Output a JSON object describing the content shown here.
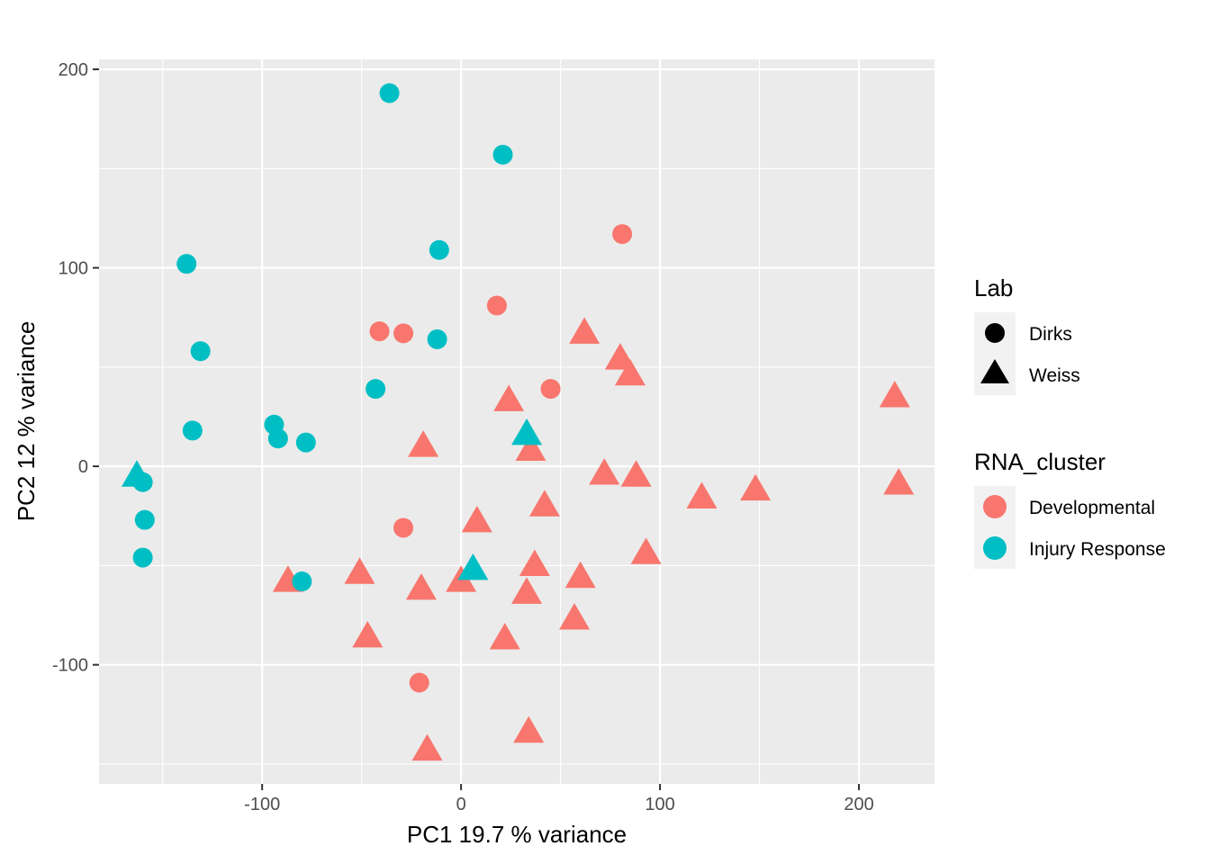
{
  "chart_data": {
    "type": "scatter",
    "title": "",
    "xlabel": "PC1 19.7 % variance",
    "ylabel": "PC2 12 % variance",
    "xlim": [
      -182,
      238
    ],
    "ylim": [
      -160,
      205
    ],
    "x_ticks": [
      -100,
      0,
      100,
      200
    ],
    "y_ticks": [
      -100,
      0,
      100,
      200
    ],
    "x_tick_labels": [
      "-100",
      "0",
      "100",
      "200"
    ],
    "y_tick_labels": [
      "-100",
      "0",
      "100",
      "200"
    ],
    "grid": true,
    "legend_position": "right",
    "shape_legend": {
      "title": "Lab",
      "entries": [
        {
          "label": "Dirks",
          "shape": "circle"
        },
        {
          "label": "Weiss",
          "shape": "triangle"
        }
      ]
    },
    "color_legend": {
      "title": "RNA_cluster",
      "entries": [
        {
          "label": "Developmental",
          "color": "#F8766D"
        },
        {
          "label": "Injury Response",
          "color": "#00BFC4"
        }
      ]
    },
    "series": [
      {
        "name": "Developmental",
        "color": "#F8766D",
        "lab": "Dirks",
        "shape": "circle",
        "x": [
          81,
          18,
          -41,
          -29,
          45,
          -29,
          -21
        ],
        "y": [
          117,
          81,
          68,
          67,
          39,
          -31,
          -109
        ]
      },
      {
        "name": "Developmental",
        "color": "#F8766D",
        "lab": "Weiss",
        "shape": "triangle",
        "x": [
          62,
          80,
          85,
          24,
          35,
          -19,
          72,
          88,
          42,
          121,
          148,
          218,
          220,
          8,
          -51,
          -87,
          -20,
          0,
          37,
          33,
          60,
          -47,
          22,
          57,
          34,
          -17,
          93
        ],
        "y": [
          67,
          54,
          46,
          33,
          8,
          10,
          -4,
          -5,
          -20,
          -16,
          -12,
          35,
          -9,
          -28,
          -54,
          -58,
          -62,
          -58,
          -50,
          -64,
          -56,
          -86,
          -87,
          -77,
          -134,
          -143,
          -44
        ]
      },
      {
        "name": "Injury Response",
        "color": "#00BFC4",
        "lab": "Dirks",
        "shape": "circle",
        "x": [
          -36,
          21,
          -11,
          -138,
          -131,
          -12,
          -43,
          -135,
          -94,
          -92,
          -78,
          -160,
          -159,
          -160,
          -80
        ],
        "y": [
          188,
          157,
          109,
          102,
          58,
          64,
          39,
          18,
          21,
          14,
          12,
          -8,
          -27,
          -46,
          -58
        ]
      },
      {
        "name": "Injury Response",
        "color": "#00BFC4",
        "lab": "Weiss",
        "shape": "triangle",
        "x": [
          -163,
          33,
          6
        ],
        "y": [
          -5,
          16,
          -52
        ]
      }
    ]
  }
}
